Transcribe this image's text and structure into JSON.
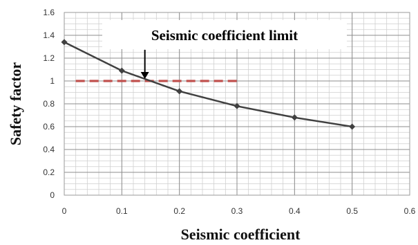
{
  "chart_data": {
    "type": "line",
    "x": [
      0,
      0.1,
      0.2,
      0.3,
      0.4,
      0.5
    ],
    "series": [
      {
        "values": [
          1.34,
          1.09,
          0.91,
          0.78,
          0.68,
          0.6
        ],
        "color": "#404040",
        "marker": "diamond"
      }
    ],
    "reference_line": {
      "y": 1.0,
      "x_range": [
        0.02,
        0.3
      ],
      "style": "dashed",
      "color": "#c0504d"
    },
    "annotation": {
      "text": "Seismic coefficient limit",
      "points_to": [
        0.14,
        1.0
      ]
    },
    "xlabel": "Seismic coefficient",
    "ylabel": "Safety factor",
    "xlim": [
      0,
      0.6
    ],
    "ylim": [
      0,
      1.6
    ],
    "x_ticks": [
      "0",
      "0.1",
      "0.2",
      "0.3",
      "0.4",
      "0.5",
      "0.6"
    ],
    "y_ticks": [
      "0",
      "0.2",
      "0.4",
      "0.6",
      "0.8",
      "1",
      "1.2",
      "1.4",
      "1.6"
    ],
    "grid": true,
    "minor_grid": true,
    "legend": "none"
  }
}
